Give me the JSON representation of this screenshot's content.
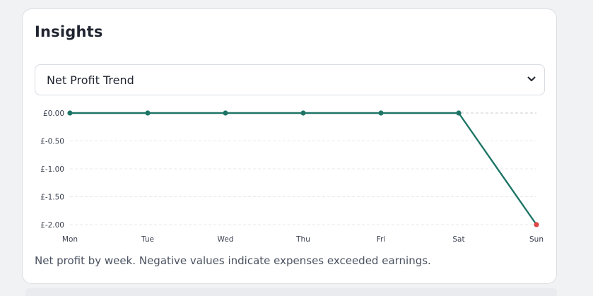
{
  "insights": {
    "title": "Insights",
    "select": {
      "value": "Net Profit Trend"
    },
    "caption": "Net profit by week. Negative values indicate expenses exceeded earnings."
  },
  "chart_data": {
    "type": "line",
    "categories": [
      "Mon",
      "Tue",
      "Wed",
      "Thu",
      "Fri",
      "Sat",
      "Sun"
    ],
    "values": [
      0,
      0,
      0,
      0,
      0,
      0,
      -2
    ],
    "y_ticks": [
      0,
      -0.5,
      -1,
      -1.5,
      -2
    ],
    "y_tick_labels": [
      "£0.00",
      "£-0.50",
      "£-1.00",
      "£-1.50",
      "£-2.00"
    ],
    "ylim": [
      -2,
      0
    ],
    "grid": "horizontal dashed",
    "colors": {
      "line": "#1d7566",
      "point": "#1d7566",
      "negative_point": "#e04646",
      "grid": "#e6e8ec",
      "zero_line": "#c9ccd2"
    }
  }
}
